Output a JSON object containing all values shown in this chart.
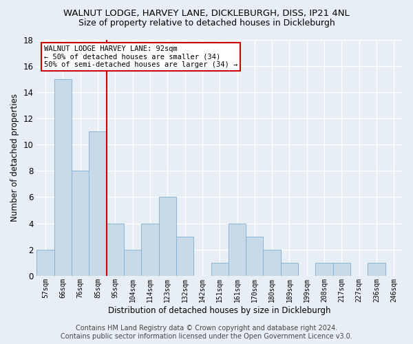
{
  "title": "WALNUT LODGE, HARVEY LANE, DICKLEBURGH, DISS, IP21 4NL",
  "subtitle": "Size of property relative to detached houses in Dickleburgh",
  "xlabel": "Distribution of detached houses by size in Dickleburgh",
  "ylabel": "Number of detached properties",
  "bar_labels": [
    "57sqm",
    "66sqm",
    "76sqm",
    "85sqm",
    "95sqm",
    "104sqm",
    "114sqm",
    "123sqm",
    "132sqm",
    "142sqm",
    "151sqm",
    "161sqm",
    "170sqm",
    "180sqm",
    "189sqm",
    "199sqm",
    "208sqm",
    "217sqm",
    "227sqm",
    "236sqm",
    "246sqm"
  ],
  "bar_values": [
    2,
    15,
    8,
    11,
    4,
    2,
    4,
    6,
    3,
    0,
    1,
    4,
    3,
    2,
    1,
    0,
    1,
    1,
    0,
    1,
    0
  ],
  "bar_color": "#c8daea",
  "bar_edgecolor": "#8ab4d4",
  "vline_x_index": 3.5,
  "vline_color": "#cc0000",
  "ylim": [
    0,
    18
  ],
  "yticks": [
    0,
    2,
    4,
    6,
    8,
    10,
    12,
    14,
    16,
    18
  ],
  "annotation_text": "WALNUT LODGE HARVEY LANE: 92sqm\n← 50% of detached houses are smaller (34)\n50% of semi-detached houses are larger (34) →",
  "annotation_box_color": "#ffffff",
  "annotation_box_edgecolor": "#cc0000",
  "footer_line1": "Contains HM Land Registry data © Crown copyright and database right 2024.",
  "footer_line2": "Contains public sector information licensed under the Open Government Licence v3.0.",
  "background_color": "#e8eef5",
  "plot_background": "#e8eef5",
  "grid_color": "#ffffff",
  "title_fontsize": 9.5,
  "subtitle_fontsize": 9,
  "footer_fontsize": 7
}
